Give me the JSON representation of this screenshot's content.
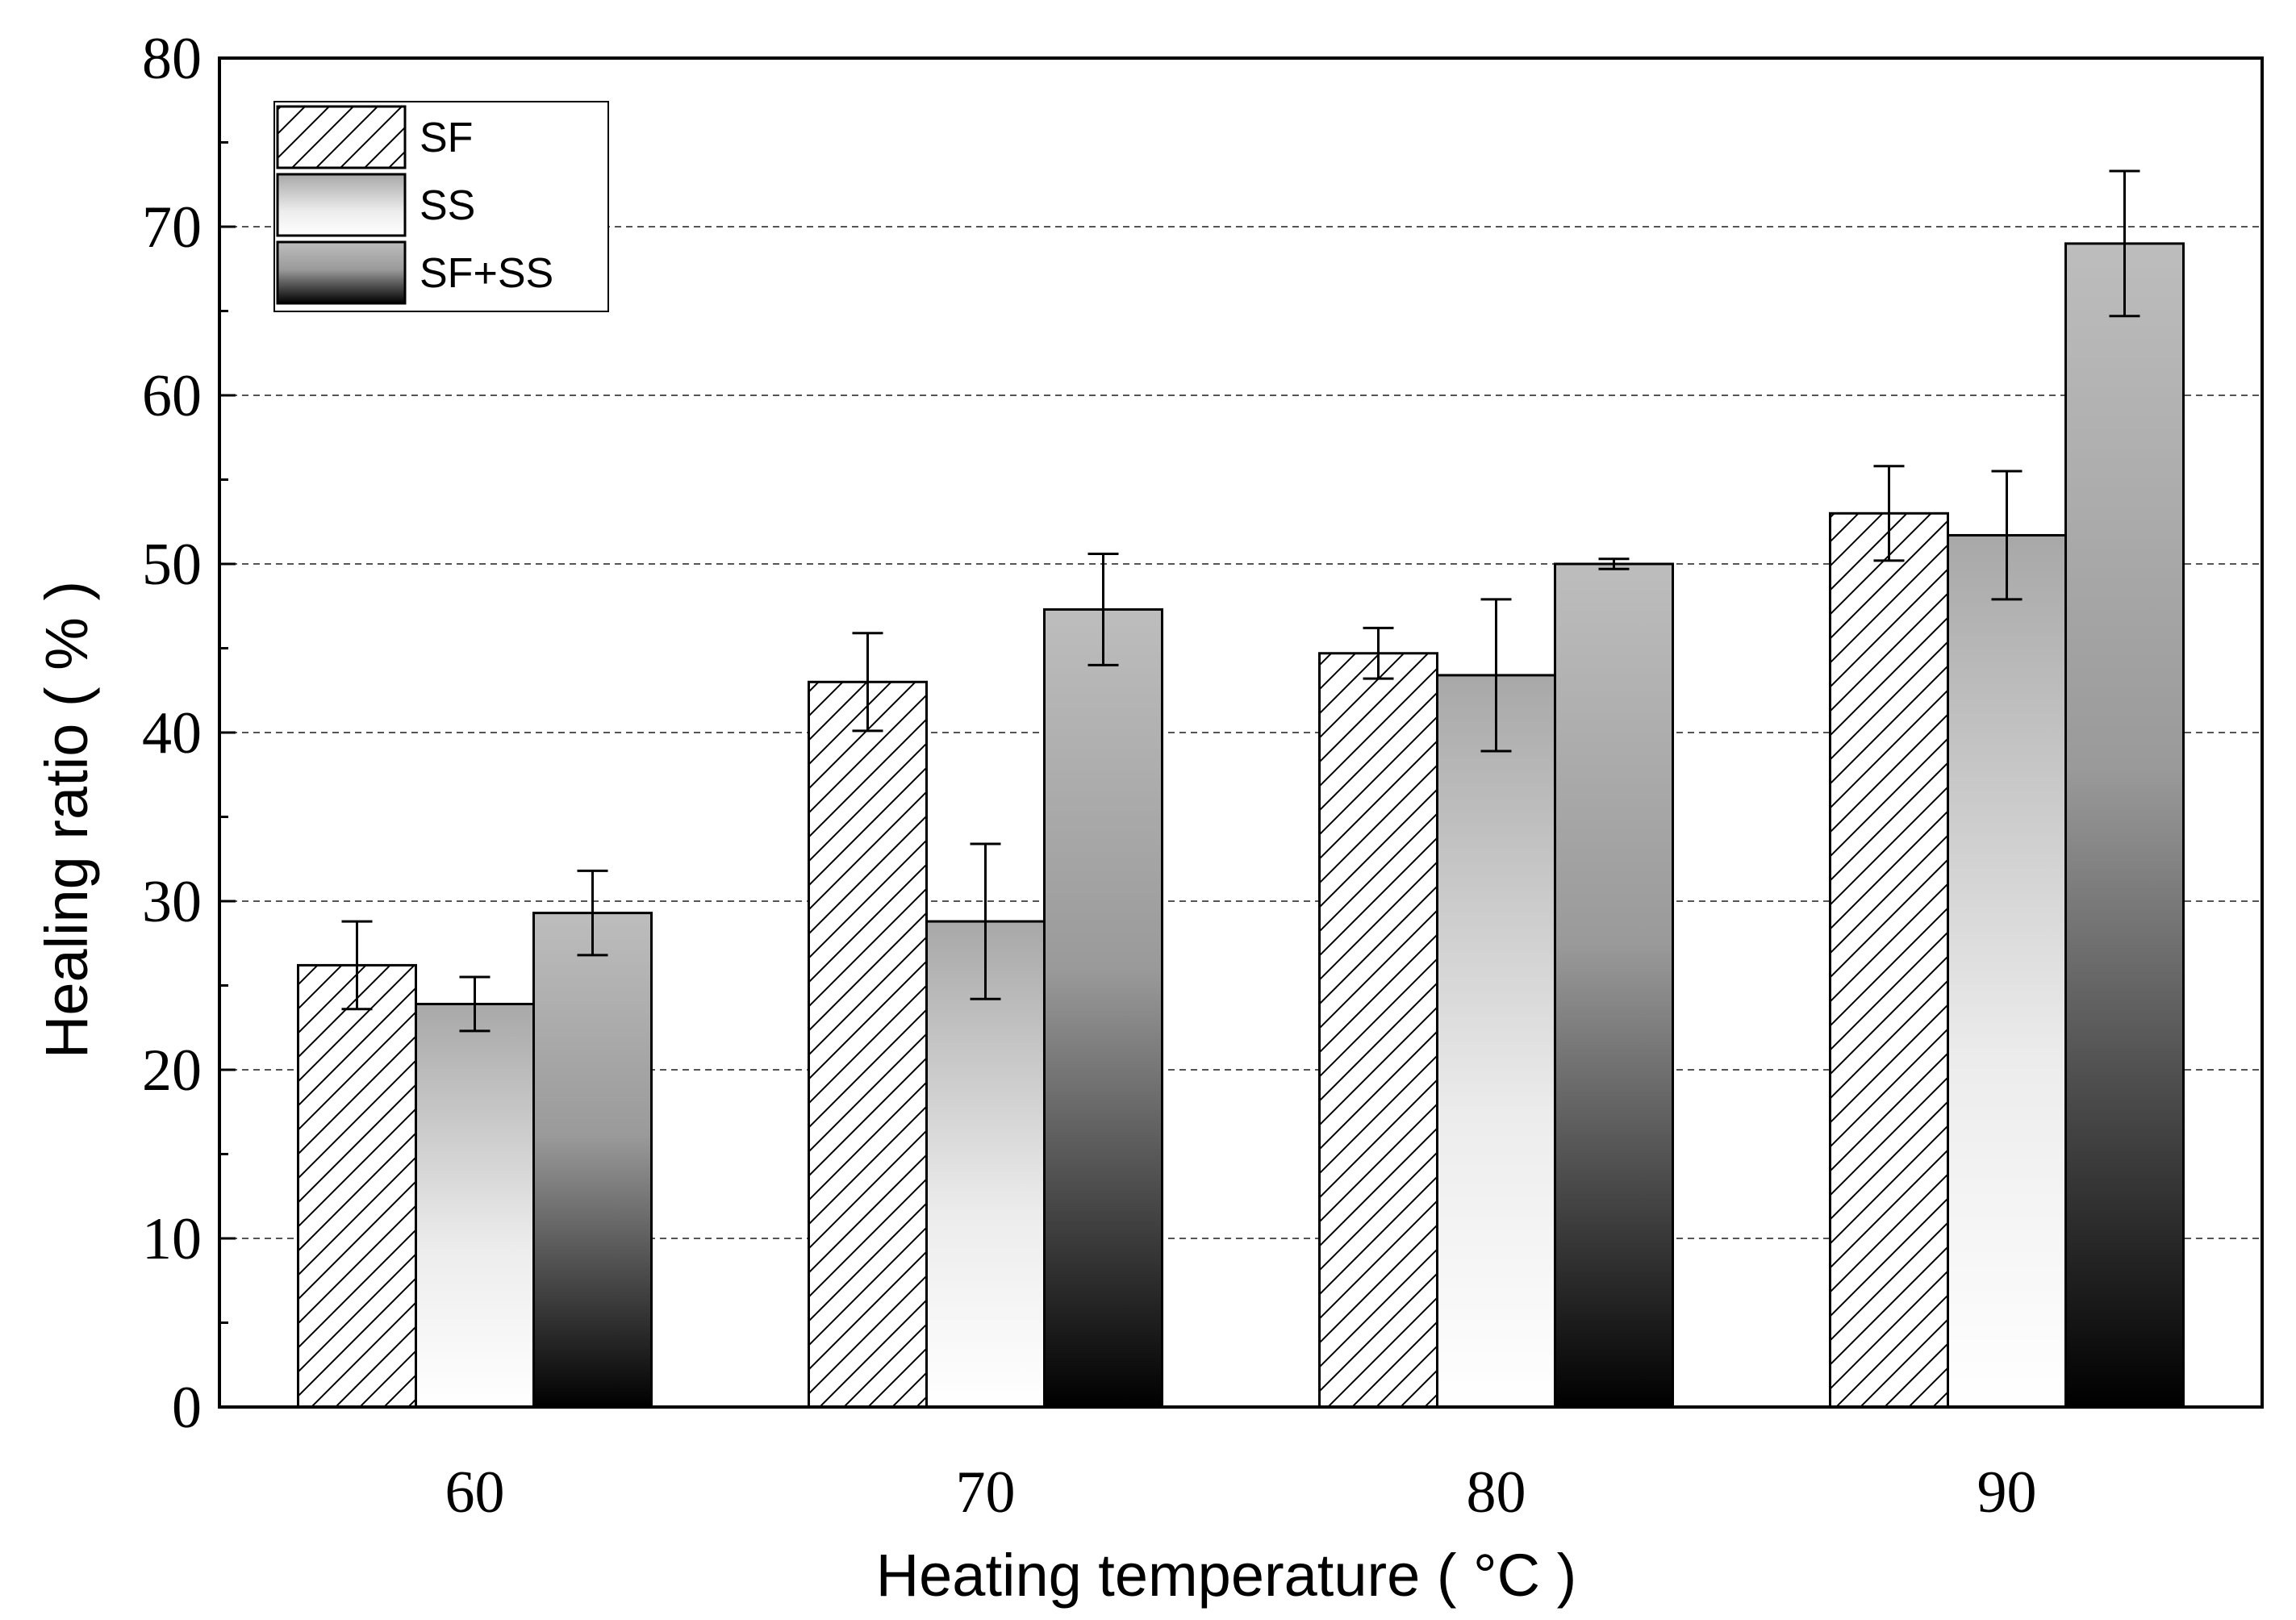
{
  "chart_data": {
    "type": "bar",
    "xlabel": "Heating temperature ( °C )",
    "ylabel": "Healing ratio ( % )",
    "ylim": [
      0,
      80
    ],
    "yticks": [
      "0",
      "10",
      "20",
      "30",
      "40",
      "50",
      "60",
      "70",
      "80"
    ],
    "categories": [
      "60",
      "70",
      "80",
      "90"
    ],
    "grid": "horizontal dashed",
    "legend_position": "top-left",
    "series": [
      {
        "name": "SF",
        "values": [
          26.2,
          43.0,
          44.7,
          53.0
        ],
        "errors": [
          2.6,
          2.9,
          1.5,
          2.8
        ],
        "fill": "hatch"
      },
      {
        "name": "SS",
        "values": [
          23.9,
          28.8,
          43.4,
          51.7
        ],
        "errors": [
          1.6,
          4.6,
          4.5,
          3.8
        ],
        "fill": "gradient-light"
      },
      {
        "name": "SF+SS",
        "values": [
          29.3,
          47.3,
          50.0,
          69.0
        ],
        "errors": [
          2.5,
          3.3,
          0.3,
          4.3
        ],
        "fill": "gradient-dark"
      }
    ]
  }
}
